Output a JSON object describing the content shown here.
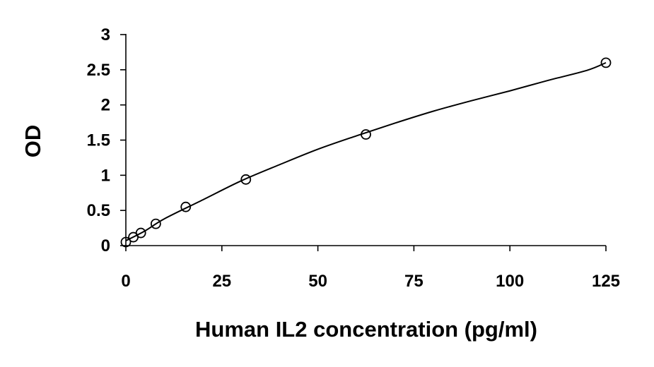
{
  "chart_data": {
    "type": "scatter",
    "title": "",
    "xlabel": "Human IL2 concentration (pg/ml)",
    "ylabel": "OD",
    "xlim": [
      0,
      125
    ],
    "ylim": [
      0,
      3
    ],
    "x_ticks": [
      0,
      25,
      50,
      75,
      100,
      125
    ],
    "x_tick_labels": [
      "0",
      "25",
      "50",
      "75",
      "100",
      "125"
    ],
    "y_ticks": [
      0,
      0.5,
      1,
      1.5,
      2,
      2.5,
      3
    ],
    "y_tick_labels": [
      "0",
      "0.5",
      "1",
      "1.5",
      "2",
      "2.5",
      "3"
    ],
    "grid": false,
    "legend": "none",
    "series": [
      {
        "marker": "open-circle",
        "x": [
          0,
          1.95,
          3.9,
          7.8,
          15.6,
          31.25,
          62.5,
          125
        ],
        "y": [
          0.05,
          0.12,
          0.18,
          0.31,
          0.55,
          0.94,
          1.58,
          2.6
        ]
      }
    ],
    "fit_curve": {
      "style": "smooth-line",
      "x": [
        0,
        5,
        10,
        20,
        30,
        40,
        50,
        60,
        70,
        80,
        90,
        100,
        110,
        120,
        125
      ],
      "y": [
        0.07,
        0.21,
        0.38,
        0.65,
        0.92,
        1.15,
        1.37,
        1.56,
        1.74,
        1.91,
        2.06,
        2.2,
        2.35,
        2.49,
        2.6
      ]
    },
    "colors": {
      "axis": "#000000",
      "marker_stroke": "#000000",
      "marker_fill": "#ffffff",
      "curve": "#000000"
    }
  }
}
